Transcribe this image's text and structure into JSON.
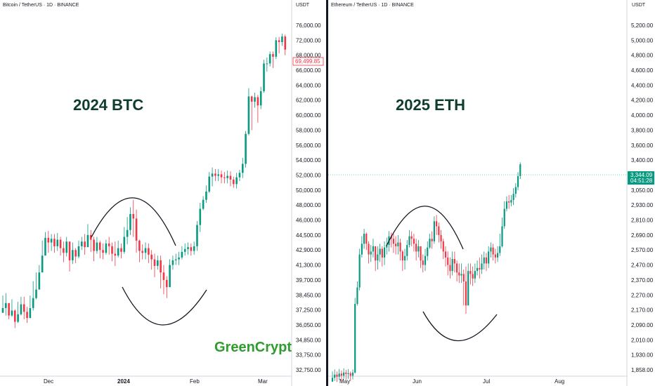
{
  "chart_data": [
    {
      "type": "candlestick",
      "legend": "Bitcoin / TetherUS · 1D · BINANCE",
      "unit": "USDT",
      "annotation": "2024 BTC",
      "watermark": "GreenCrypt",
      "scale": "log",
      "ylim": [
        32000,
        80000
      ],
      "yticks": [
        "76,000.00",
        "72,000.00",
        "68,000.00",
        "66,000.00",
        "64,000.00",
        "62,000.00",
        "60,000.00",
        "58,000.00",
        "56,000.00",
        "54,000.00",
        "52,000.00",
        "50,000.00",
        "48,000.00",
        "46,000.00",
        "44,500.00",
        "42,900.00",
        "41,300.00",
        "39,700.00",
        "38,450.00",
        "37,250.00",
        "36,050.00",
        "34,850.00",
        "33,750.00",
        "32,750.00"
      ],
      "ytick_values": [
        76000,
        72000,
        68000,
        66000,
        64000,
        62000,
        60000,
        58000,
        56000,
        54000,
        52000,
        50000,
        48000,
        46000,
        44500,
        42900,
        41300,
        39700,
        38450,
        37250,
        36050,
        34850,
        33750,
        32750
      ],
      "xticks": [
        "Dec",
        "2024",
        "Feb",
        "Mar"
      ],
      "last_price": "69,499.85",
      "last_price_value": 69499.85,
      "colors": {
        "up": "#089981",
        "down": "#f23645",
        "tag": "#f23645"
      },
      "closes": [
        37400,
        37800,
        36800,
        37200,
        36300,
        36900,
        37700,
        37100,
        36600,
        37400,
        38200,
        38900,
        40500,
        42300,
        44200,
        43700,
        44100,
        43300,
        44000,
        43100,
        42600,
        43800,
        41800,
        42900,
        42200,
        43300,
        43800,
        43200,
        44500,
        44000,
        42800,
        43700,
        42900,
        42600,
        43600,
        43300,
        42500,
        42300,
        43100,
        42700,
        44300,
        45000,
        46800,
        46200,
        43900,
        42800,
        42600,
        43100,
        42400,
        41900,
        41200,
        41800,
        40500,
        39700,
        39100,
        41300,
        41800,
        41900,
        42100,
        42700,
        43000,
        43200,
        42800,
        43300,
        45500,
        47500,
        48700,
        49800,
        51800,
        52200,
        51900,
        52100,
        51700,
        51600,
        51900,
        51400,
        50800,
        51700,
        52300,
        53500,
        57500,
        62500,
        61800,
        62400,
        61300,
        63200,
        66900,
        66900,
        68300,
        67800,
        72000,
        71500,
        73000,
        69500
      ],
      "lows": [
        37000,
        36800,
        36500,
        36700,
        35800,
        36200,
        36800,
        36500,
        36200,
        36600,
        37200,
        38100,
        39800,
        41600,
        43000,
        42600,
        42800,
        42600,
        42800,
        42300,
        41600,
        42200,
        40600,
        41400,
        41500,
        42000,
        42900,
        42400,
        43300,
        42700,
        41700,
        42500,
        42000,
        41900,
        42400,
        42400,
        41700,
        41200,
        42100,
        42000,
        42500,
        43500,
        44500,
        44300,
        42600,
        41600,
        41900,
        41900,
        41500,
        40800,
        40000,
        40800,
        39000,
        38500,
        38200,
        39200,
        40800,
        41300,
        41300,
        41900,
        42300,
        42400,
        42300,
        42400,
        42800,
        44800,
        47300,
        48300,
        49600,
        50500,
        51200,
        51200,
        50900,
        50900,
        50900,
        50500,
        50300,
        50200,
        51200,
        51600,
        53000,
        57300,
        58000,
        61000,
        59000,
        60800,
        63000,
        65800,
        66500,
        66300,
        67500,
        68500,
        70500,
        68000
      ],
      "highs": [
        38400,
        38600,
        37700,
        38100,
        37300,
        37900,
        38300,
        38300,
        37500,
        38400,
        39600,
        40500,
        41300,
        43900,
        44800,
        44900,
        44600,
        44600,
        44700,
        44300,
        43800,
        44300,
        43200,
        43700,
        43100,
        43900,
        44300,
        44600,
        45600,
        45000,
        44300,
        44300,
        43900,
        43600,
        44000,
        44300,
        43700,
        43800,
        43900,
        43600,
        45300,
        46400,
        47700,
        48700,
        47400,
        44000,
        43500,
        43700,
        43600,
        42900,
        42500,
        42300,
        42300,
        41300,
        40100,
        41900,
        42300,
        42500,
        42700,
        43300,
        43600,
        43700,
        43600,
        43800,
        45900,
        48300,
        49200,
        50600,
        52400,
        53000,
        52800,
        52800,
        52600,
        52400,
        52600,
        52500,
        51800,
        52300,
        52700,
        54300,
        57900,
        63600,
        62600,
        63000,
        62700,
        63800,
        67400,
        67700,
        69000,
        69000,
        72800,
        72900,
        73800,
        73500
      ]
    },
    {
      "type": "candlestick",
      "legend": "Ethereum / TetherUS · 1D · BINANCE",
      "unit": "USDT",
      "annotation": "2025 ETH",
      "scale": "log",
      "ylim": [
        1820,
        5400
      ],
      "yticks": [
        "5,200.00",
        "5,000.00",
        "4,800.00",
        "4,600.00",
        "4,400.00",
        "4,200.00",
        "4,000.00",
        "3,800.00",
        "3,600.00",
        "3,400.00",
        "3,200.00",
        "3,050.00",
        "2,930.00",
        "2,810.00",
        "2,690.00",
        "2,570.00",
        "2,470.00",
        "2,370.00",
        "2,270.00",
        "2,170.00",
        "2,090.00",
        "2,010.00",
        "1,930.00",
        "1,858.00"
      ],
      "ytick_values": [
        5200,
        5000,
        4800,
        4600,
        4400,
        4200,
        4000,
        3800,
        3600,
        3400,
        3200,
        3050,
        2930,
        2810,
        2690,
        2570,
        2470,
        2370,
        2270,
        2170,
        2090,
        2010,
        1930,
        1858
      ],
      "xticks": [
        "May",
        "Jun",
        "Jul",
        "Aug"
      ],
      "last_price": "3,344.09",
      "countdown": "04:51:28",
      "last_price_value": 3344.09,
      "colors": {
        "up": "#089981",
        "down": "#f23645",
        "tag": "#089981"
      },
      "closes": [
        1820,
        1835,
        1825,
        1840,
        1830,
        1845,
        1838,
        1842,
        1830,
        1845,
        2210,
        2320,
        2540,
        2620,
        2700,
        2620,
        2540,
        2560,
        2600,
        2500,
        2540,
        2580,
        2520,
        2590,
        2610,
        2680,
        2660,
        2620,
        2600,
        2630,
        2560,
        2500,
        2530,
        2610,
        2680,
        2660,
        2620,
        2560,
        2600,
        2500,
        2470,
        2530,
        2590,
        2660,
        2640,
        2800,
        2760,
        2690,
        2640,
        2560,
        2520,
        2470,
        2430,
        2510,
        2480,
        2420,
        2400,
        2410,
        2360,
        2200,
        2430,
        2410,
        2380,
        2430,
        2450,
        2440,
        2480,
        2520,
        2480,
        2560,
        2590,
        2540,
        2520,
        2550,
        2600,
        2760,
        2900,
        2960,
        2950,
        2970,
        3020,
        3080,
        3190,
        3344
      ],
      "lows": [
        1800,
        1805,
        1800,
        1810,
        1805,
        1815,
        1812,
        1815,
        1805,
        1812,
        1840,
        2200,
        2300,
        2520,
        2580,
        2570,
        2480,
        2490,
        2520,
        2430,
        2440,
        2490,
        2460,
        2470,
        2540,
        2560,
        2590,
        2550,
        2540,
        2540,
        2500,
        2430,
        2440,
        2500,
        2590,
        2600,
        2560,
        2500,
        2520,
        2450,
        2420,
        2430,
        2500,
        2580,
        2580,
        2620,
        2690,
        2630,
        2580,
        2510,
        2460,
        2400,
        2380,
        2400,
        2420,
        2360,
        2350,
        2350,
        2200,
        2150,
        2260,
        2340,
        2330,
        2350,
        2400,
        2380,
        2410,
        2440,
        2430,
        2450,
        2520,
        2500,
        2480,
        2490,
        2530,
        2590,
        2740,
        2880,
        2900,
        2920,
        2930,
        2990,
        3050,
        3160
      ],
      "highs": [
        1850,
        1860,
        1850,
        1862,
        1855,
        1865,
        1858,
        1862,
        1850,
        1860,
        2250,
        2360,
        2580,
        2680,
        2740,
        2710,
        2640,
        2610,
        2660,
        2590,
        2600,
        2620,
        2600,
        2640,
        2670,
        2720,
        2710,
        2700,
        2680,
        2690,
        2660,
        2570,
        2580,
        2650,
        2730,
        2720,
        2700,
        2660,
        2650,
        2590,
        2540,
        2580,
        2640,
        2700,
        2720,
        2840,
        2850,
        2790,
        2730,
        2660,
        2600,
        2560,
        2520,
        2560,
        2560,
        2500,
        2480,
        2480,
        2440,
        2460,
        2480,
        2480,
        2460,
        2480,
        2500,
        2520,
        2540,
        2560,
        2550,
        2600,
        2630,
        2620,
        2580,
        2600,
        2700,
        2830,
        2960,
        3000,
        3010,
        3010,
        3070,
        3120,
        3240,
        3370
      ]
    }
  ]
}
